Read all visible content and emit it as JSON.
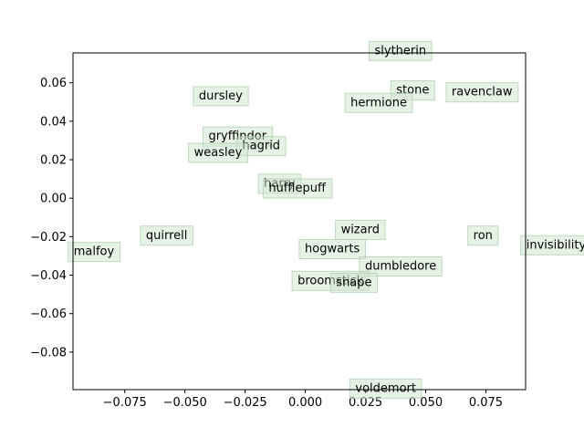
{
  "chart_data": {
    "type": "scatter",
    "title": "",
    "xlabel": "",
    "ylabel": "",
    "xlim": [
      -0.0965,
      0.0915
    ],
    "ylim": [
      -0.0995,
      0.0755
    ],
    "grid": false,
    "xticks": [
      -0.075,
      -0.05,
      -0.025,
      0.0,
      0.025,
      0.05,
      0.075
    ],
    "xtick_labels": [
      "−0.075",
      "−0.050",
      "−0.025",
      "0.000",
      "0.025",
      "0.050",
      "0.075"
    ],
    "yticks": [
      0.06,
      0.04,
      0.02,
      0.0,
      -0.02,
      -0.04,
      -0.06,
      -0.08
    ],
    "ytick_labels": [
      "0.06",
      "0.04",
      "0.02",
      "0.00",
      "−0.02",
      "−0.04",
      "−0.06",
      "−0.08"
    ],
    "box_color": "#cfe6cf",
    "points": [
      {
        "label": "slytherin",
        "x": 0.0265,
        "y": 0.077
      },
      {
        "label": "stone",
        "x": 0.0355,
        "y": 0.0565
      },
      {
        "label": "ravenclaw",
        "x": 0.0585,
        "y": 0.0555
      },
      {
        "label": "dursley",
        "x": -0.0465,
        "y": 0.0535
      },
      {
        "label": "hermione",
        "x": 0.0165,
        "y": 0.05
      },
      {
        "label": "gryffindor",
        "x": -0.0425,
        "y": 0.0325
      },
      {
        "label": "hagrid",
        "x": -0.0285,
        "y": 0.0275
      },
      {
        "label": "weasley",
        "x": -0.0485,
        "y": 0.024
      },
      {
        "label": "harry",
        "x": -0.0195,
        "y": 0.008
      },
      {
        "label": "hufflepuff",
        "x": -0.0175,
        "y": 0.0055
      },
      {
        "label": "wizard",
        "x": 0.0125,
        "y": -0.016
      },
      {
        "label": "quirrell",
        "x": -0.0685,
        "y": -0.019
      },
      {
        "label": "ron",
        "x": 0.0675,
        "y": -0.019
      },
      {
        "label": "invisibility",
        "x": 0.0895,
        "y": -0.024
      },
      {
        "label": "malfoy",
        "x": -0.0985,
        "y": -0.0275
      },
      {
        "label": "hogwarts",
        "x": -0.0025,
        "y": -0.026
      },
      {
        "label": "dumbledore",
        "x": 0.0225,
        "y": -0.035
      },
      {
        "label": "broomstick",
        "x": -0.0055,
        "y": -0.0425
      },
      {
        "label": "snape",
        "x": 0.0105,
        "y": -0.0435
      },
      {
        "label": "voldemort",
        "x": 0.0185,
        "y": -0.0985
      }
    ]
  }
}
